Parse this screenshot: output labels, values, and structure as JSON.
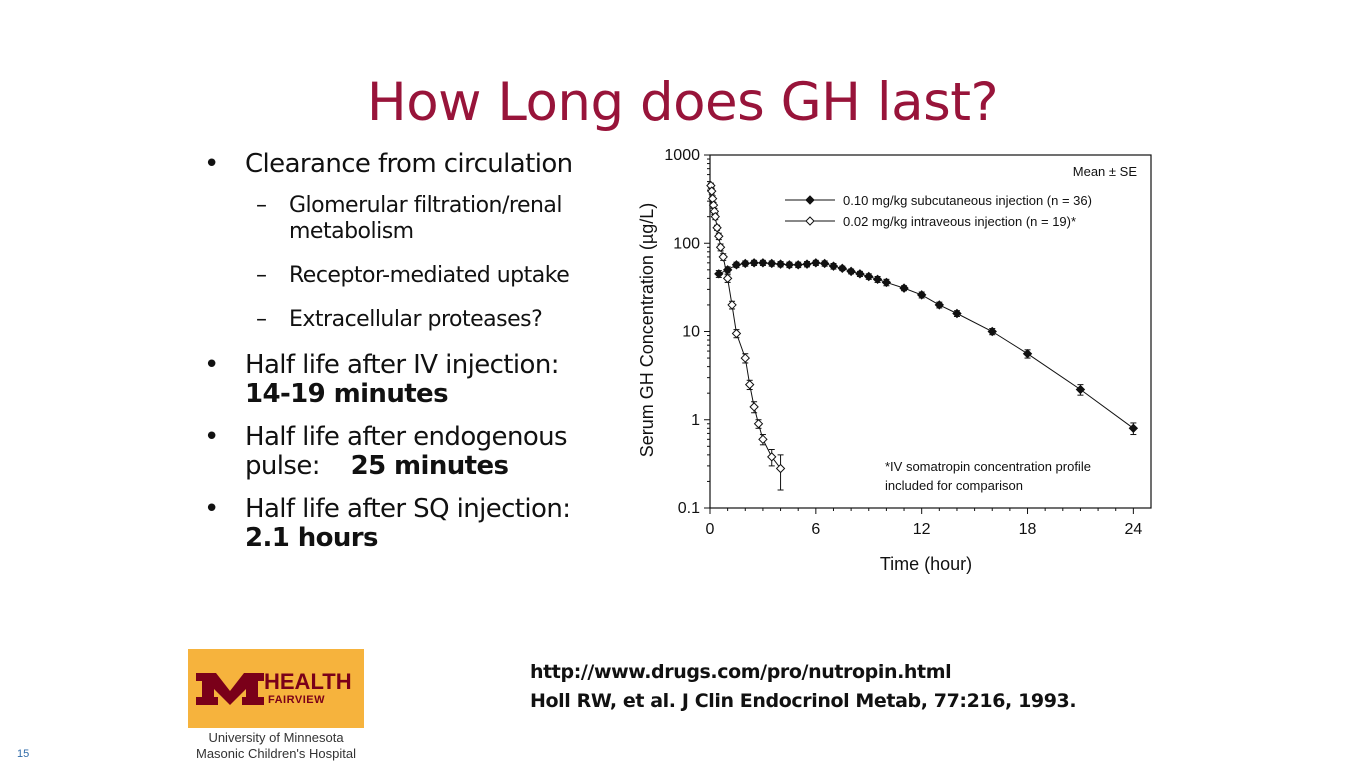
{
  "slide": {
    "title": "How Long does GH last?",
    "number": "15"
  },
  "bullets": {
    "clearance": "Clearance from circulation",
    "sub1_line1": "Glomerular filtration/renal",
    "sub1_line2": "metabolism",
    "sub2": "Receptor-mediated uptake",
    "sub3": "Extracellular proteases?",
    "iv_label": "Half life after IV injection:",
    "iv_value": "14-19 minutes",
    "endo_line1": "Half life after endogenous",
    "endo_label": "pulse:",
    "endo_value": "25 minutes",
    "sq_label": "Half life after SQ injection:",
    "sq_value": "2.1 hours",
    "bullet_glyph": "•",
    "dash_glyph": "–"
  },
  "references": {
    "line1": "http://www.drugs.com/pro/nutropin.html",
    "line2": "Holl RW, et al. J Clin Endocrinol Metab, 77:216, 1993."
  },
  "logo": {
    "word": "HEALTH",
    "sub": "FAIRVIEW",
    "caption1": "University of Minnesota",
    "caption2": "Masonic Children's Hospital",
    "brand_color": "#7a0019",
    "box_color": "#f6b33d"
  },
  "colors": {
    "title": "#98143a",
    "text": "#111111"
  },
  "chart_data": {
    "type": "line",
    "title": "",
    "xlabel": "Time (hour)",
    "ylabel": "Serum GH Concentration (µg/L)",
    "yscale": "log",
    "xlim": [
      0,
      25
    ],
    "ylim": [
      0.1,
      1000
    ],
    "xticks": [
      0,
      6,
      12,
      18,
      24
    ],
    "yticks": [
      0.1,
      1,
      10,
      100,
      1000
    ],
    "ytick_labels": [
      "0.1",
      "1",
      "10",
      "100",
      "1000"
    ],
    "corner_label": "Mean ± SE",
    "legend_position": "top-right",
    "annotation_line1": "*IV somatropin concentration profile",
    "annotation_line2": "included for comparison",
    "series": [
      {
        "name": "0.10 mg/kg subcutaneous injection (n = 36)",
        "marker": "filled-diamond",
        "x": [
          0.5,
          1,
          1.5,
          2,
          2.5,
          3,
          3.5,
          4,
          4.5,
          5,
          5.5,
          6,
          6.5,
          7,
          7.5,
          8,
          8.5,
          9,
          9.5,
          10,
          11,
          12,
          13,
          14,
          16,
          18,
          21,
          24
        ],
        "y": [
          45,
          50,
          57,
          59,
          60,
          60,
          59,
          58,
          57,
          57,
          58,
          60,
          59,
          55,
          52,
          48,
          45,
          42,
          39,
          36,
          31,
          26,
          20,
          16,
          10,
          5.6,
          2.2,
          0.8
        ],
        "err": [
          4,
          4,
          4,
          4,
          4,
          4,
          4,
          4,
          4,
          4,
          4,
          4,
          4,
          4,
          3,
          3,
          3,
          3,
          3,
          3,
          2,
          2,
          1.5,
          1.2,
          0.8,
          0.6,
          0.3,
          0.12
        ]
      },
      {
        "name": "0.02 mg/kg intraveous injection (n = 19)*",
        "marker": "open-diamond",
        "x": [
          0.05,
          0.1,
          0.15,
          0.2,
          0.25,
          0.3,
          0.4,
          0.5,
          0.6,
          0.75,
          1,
          1.25,
          1.5,
          2,
          2.25,
          2.5,
          2.75,
          3,
          3.5,
          4
        ],
        "y": [
          450,
          390,
          320,
          270,
          230,
          200,
          150,
          120,
          90,
          70,
          40,
          20,
          9.5,
          5,
          2.5,
          1.4,
          0.9,
          0.6,
          0.38,
          0.28
        ],
        "err": [
          30,
          30,
          25,
          20,
          18,
          15,
          10,
          10,
          8,
          6,
          4,
          2,
          1,
          0.6,
          0.3,
          0.2,
          0.1,
          0.08,
          0.08,
          0.12
        ]
      }
    ]
  }
}
